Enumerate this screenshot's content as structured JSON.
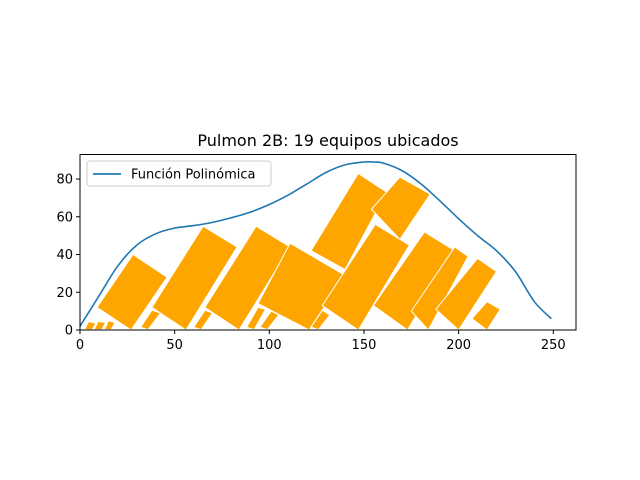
{
  "chart_data": {
    "type": "line",
    "title": "Pulmon 2B: 19 equipos ubicados",
    "xlabel": "",
    "ylabel": "",
    "xlim": [
      0,
      262
    ],
    "ylim": [
      0,
      93
    ],
    "xticks": [
      0,
      50,
      100,
      150,
      200,
      250
    ],
    "yticks": [
      0,
      20,
      40,
      60,
      80
    ],
    "legend": {
      "position": "upper-left",
      "entries": [
        "Función Polinómica"
      ]
    },
    "grid": false,
    "colors": {
      "line": "#1f77b4",
      "rect": "#ffa500",
      "rect_edge": "#ffffff"
    },
    "series": [
      {
        "name": "Función Polinómica",
        "x": [
          0,
          10,
          20,
          30,
          40,
          50,
          60,
          70,
          80,
          90,
          100,
          110,
          120,
          130,
          140,
          150,
          155,
          160,
          170,
          180,
          190,
          200,
          210,
          220,
          230,
          240,
          249
        ],
        "y": [
          2,
          18,
          34,
          45,
          51,
          54,
          55.3,
          57,
          59.5,
          62.5,
          66.5,
          71.5,
          77.5,
          83.5,
          87.5,
          89,
          89,
          88.5,
          84.5,
          77.5,
          68.5,
          59,
          50,
          42,
          31,
          15,
          6
        ]
      }
    ],
    "rectangles": [
      {
        "corners": [
          [
            2.5,
            0.2
          ],
          [
            6.5,
            0.2
          ],
          [
            8.5,
            3.5
          ],
          [
            4.5,
            4.5
          ]
        ]
      },
      {
        "corners": [
          [
            7.5,
            0.2
          ],
          [
            11.5,
            0.2
          ],
          [
            13.5,
            4
          ],
          [
            9.5,
            4.5
          ]
        ]
      },
      {
        "corners": [
          [
            13,
            0.2
          ],
          [
            16.5,
            0.2
          ],
          [
            18.5,
            4
          ],
          [
            15,
            5
          ]
        ]
      },
      {
        "corners": [
          [
            9,
            12
          ],
          [
            28,
            40
          ],
          [
            46,
            28
          ],
          [
            27,
            0
          ]
        ]
      },
      {
        "corners": [
          [
            32,
            1.5
          ],
          [
            36,
            0.2
          ],
          [
            42.5,
            9
          ],
          [
            38,
            10.5
          ]
        ]
      },
      {
        "corners": [
          [
            38,
            12
          ],
          [
            65,
            55
          ],
          [
            83,
            44
          ],
          [
            56,
            0
          ]
        ]
      },
      {
        "corners": [
          [
            60,
            1.5
          ],
          [
            64,
            0.2
          ],
          [
            70,
            9
          ],
          [
            66,
            10.5
          ]
        ]
      },
      {
        "corners": [
          [
            66,
            12
          ],
          [
            93,
            55
          ],
          [
            111,
            44
          ],
          [
            84,
            0
          ]
        ]
      },
      {
        "corners": [
          [
            88,
            1.5
          ],
          [
            92,
            0.2
          ],
          [
            98,
            11
          ],
          [
            94,
            12
          ]
        ]
      },
      {
        "corners": [
          [
            95,
            1.5
          ],
          [
            99,
            0.2
          ],
          [
            105,
            8
          ],
          [
            101,
            10
          ]
        ]
      },
      {
        "corners": [
          [
            94,
            14
          ],
          [
            111,
            46
          ],
          [
            140,
            29
          ],
          [
            121,
            0
          ]
        ]
      },
      {
        "corners": [
          [
            122,
            1.5
          ],
          [
            126,
            0.2
          ],
          [
            132,
            8
          ],
          [
            128,
            10.5
          ]
        ]
      },
      {
        "corners": [
          [
            122,
            42
          ],
          [
            147,
            83
          ],
          [
            162,
            73
          ],
          [
            140,
            32
          ]
        ]
      },
      {
        "corners": [
          [
            128,
            13
          ],
          [
            156,
            56
          ],
          [
            174,
            45
          ],
          [
            147,
            0
          ]
        ]
      },
      {
        "corners": [
          [
            154,
            64
          ],
          [
            169,
            81
          ],
          [
            185,
            72
          ],
          [
            169,
            48
          ]
        ]
      },
      {
        "corners": [
          [
            155,
            13
          ],
          [
            182,
            52
          ],
          [
            198,
            42
          ],
          [
            173,
            0
          ]
        ]
      },
      {
        "corners": [
          [
            175,
            10
          ],
          [
            198,
            44
          ],
          [
            205,
            39
          ],
          [
            184,
            0
          ]
        ]
      },
      {
        "corners": [
          [
            188,
            11
          ],
          [
            210,
            38
          ],
          [
            220,
            31
          ],
          [
            200,
            0
          ]
        ]
      },
      {
        "corners": [
          [
            207,
            6
          ],
          [
            215,
            15
          ],
          [
            222,
            11
          ],
          [
            215,
            0
          ]
        ]
      }
    ]
  }
}
